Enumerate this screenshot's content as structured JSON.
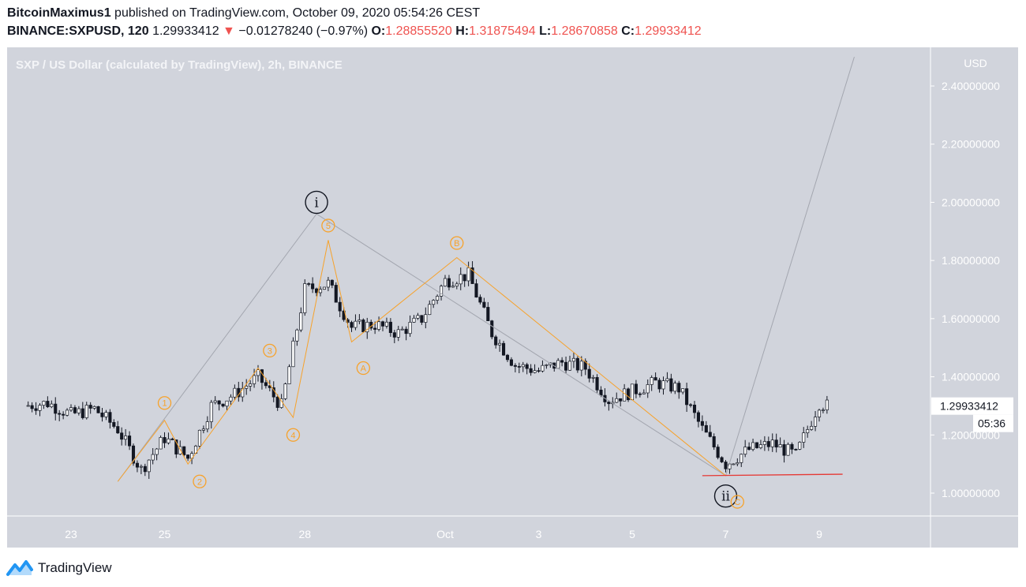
{
  "header": {
    "author": "BitcoinMaximus1",
    "published_text": "published on TradingView.com, October 09, 2020 05:54:26 CEST",
    "symbol": "BINANCE:SXPUSD, 120",
    "last": "1.29933412",
    "change_arrow": "▼",
    "change": "−0.01278240 (−0.97%)",
    "o_label": "O:",
    "o_value": "1.28855520",
    "h_label": "H:",
    "h_value": "1.31875494",
    "l_label": "L:",
    "l_value": "1.28670858",
    "c_label": "C:",
    "c_value": "1.29933412"
  },
  "footer": {
    "brand": "TradingView",
    "logo_icon": "tradingview-logo-icon"
  },
  "colors": {
    "background": "#d1d4dc",
    "candle_up": "#ffffff",
    "candle_down": "#131722",
    "wave_orange": "#f7a22b",
    "wave_gray": "#a3a6af",
    "support_red": "#e53935",
    "price_label_bg": "#ffffff",
    "axis_text": "#ffffff"
  },
  "chart_data": {
    "type": "candlestick",
    "title": "SXP / US Dollar (calculated by TradingView), 2h, BINANCE",
    "currency": "USD",
    "x_ticks": [
      "23",
      "25",
      "28",
      "Oct",
      "3",
      "5",
      "7",
      "9"
    ],
    "y_ticks": [
      "2.40000000",
      "2.20000000",
      "2.00000000",
      "1.80000000",
      "1.60000000",
      "1.40000000",
      "1.20000000",
      "1.00000000"
    ],
    "y_range": [
      0.92,
      2.5
    ],
    "last_price": "1.29933412",
    "countdown": "05:36",
    "close_series": [
      {
        "t": "Sep 22 00:00",
        "c": 1.3
      },
      {
        "t": "Sep 22 12:00",
        "c": 1.31
      },
      {
        "t": "Sep 23 00:00",
        "c": 1.27
      },
      {
        "t": "Sep 23 12:00",
        "c": 1.29
      },
      {
        "t": "Sep 24 00:00",
        "c": 1.22
      },
      {
        "t": "Sep 24 12:00",
        "c": 1.08
      },
      {
        "t": "Sep 25 00:00",
        "c": 1.19
      },
      {
        "t": "Sep 25 12:00",
        "c": 1.12
      },
      {
        "t": "Sep 26 00:00",
        "c": 1.3
      },
      {
        "t": "Sep 26 12:00",
        "c": 1.34
      },
      {
        "t": "Sep 27 00:00",
        "c": 1.4
      },
      {
        "t": "Sep 27 12:00",
        "c": 1.3
      },
      {
        "t": "Sep 28 00:00",
        "c": 1.7
      },
      {
        "t": "Sep 28 12:00",
        "c": 1.72
      },
      {
        "t": "Sep 29 00:00",
        "c": 1.57
      },
      {
        "t": "Sep 29 12:00",
        "c": 1.58
      },
      {
        "t": "Sep 30 00:00",
        "c": 1.55
      },
      {
        "t": "Sep 30 12:00",
        "c": 1.6
      },
      {
        "t": "Oct 01 00:00",
        "c": 1.73
      },
      {
        "t": "Oct 01 12:00",
        "c": 1.75
      },
      {
        "t": "Oct 02 00:00",
        "c": 1.55
      },
      {
        "t": "Oct 02 12:00",
        "c": 1.44
      },
      {
        "t": "Oct 03 00:00",
        "c": 1.42
      },
      {
        "t": "Oct 03 12:00",
        "c": 1.45
      },
      {
        "t": "Oct 04 00:00",
        "c": 1.43
      },
      {
        "t": "Oct 04 12:00",
        "c": 1.32
      },
      {
        "t": "Oct 05 00:00",
        "c": 1.35
      },
      {
        "t": "Oct 05 12:00",
        "c": 1.38
      },
      {
        "t": "Oct 06 00:00",
        "c": 1.36
      },
      {
        "t": "Oct 06 12:00",
        "c": 1.22
      },
      {
        "t": "Oct 07 00:00",
        "c": 1.1
      },
      {
        "t": "Oct 07 12:00",
        "c": 1.15
      },
      {
        "t": "Oct 08 00:00",
        "c": 1.17
      },
      {
        "t": "Oct 08 12:00",
        "c": 1.13
      },
      {
        "t": "Oct 09 00:00",
        "c": 1.31
      },
      {
        "t": "Oct 09 04:00",
        "c": 1.3
      }
    ],
    "annotations": [
      {
        "label": "i",
        "style": "black-circle",
        "t": "Sep 28 06:00",
        "y": 2.0
      },
      {
        "label": "ii",
        "style": "black-circle",
        "t": "Oct 07 00:00",
        "y": 0.99
      },
      {
        "label": "1",
        "style": "orange-circle",
        "t": "Sep 25 00:00",
        "y": 1.31
      },
      {
        "label": "2",
        "style": "orange-circle",
        "t": "Sep 25 18:00",
        "y": 1.04
      },
      {
        "label": "3",
        "style": "orange-circle",
        "t": "Sep 27 06:00",
        "y": 1.49
      },
      {
        "label": "4",
        "style": "orange-circle",
        "t": "Sep 27 18:00",
        "y": 1.2
      },
      {
        "label": "5",
        "style": "orange-circle",
        "t": "Sep 28 12:00",
        "y": 1.92
      },
      {
        "label": "A",
        "style": "orange-circle",
        "t": "Sep 29 06:00",
        "y": 1.43
      },
      {
        "label": "B",
        "style": "orange-circle",
        "t": "Oct 01 06:00",
        "y": 1.86
      },
      {
        "label": "C",
        "style": "orange-circle",
        "t": "Oct 07 06:00",
        "y": 0.97
      }
    ],
    "wave_lines": {
      "gray": [
        {
          "t": "Sep 24 00:00",
          "y": 1.04
        },
        {
          "t": "Sep 28 06:00",
          "y": 1.96
        },
        {
          "t": "Oct 07 00:00",
          "y": 1.06
        },
        {
          "t": "Oct 09 18:00",
          "y": 2.5
        }
      ],
      "orange": [
        {
          "t": "Sep 24 00:00",
          "y": 1.04
        },
        {
          "t": "Sep 25 00:00",
          "y": 1.25
        },
        {
          "t": "Sep 25 12:00",
          "y": 1.1
        },
        {
          "t": "Sep 27 00:00",
          "y": 1.43
        },
        {
          "t": "Sep 27 18:00",
          "y": 1.26
        },
        {
          "t": "Sep 28 12:00",
          "y": 1.87
        },
        {
          "t": "Sep 29 00:00",
          "y": 1.52
        },
        {
          "t": "Oct 01 06:00",
          "y": 1.81
        },
        {
          "t": "Oct 07 00:00",
          "y": 1.06
        }
      ]
    },
    "support_line": {
      "color": "red",
      "from": {
        "t": "Oct 06 12:00",
        "y": 1.06
      },
      "to": {
        "t": "Oct 09 12:00",
        "y": 1.065
      }
    }
  }
}
